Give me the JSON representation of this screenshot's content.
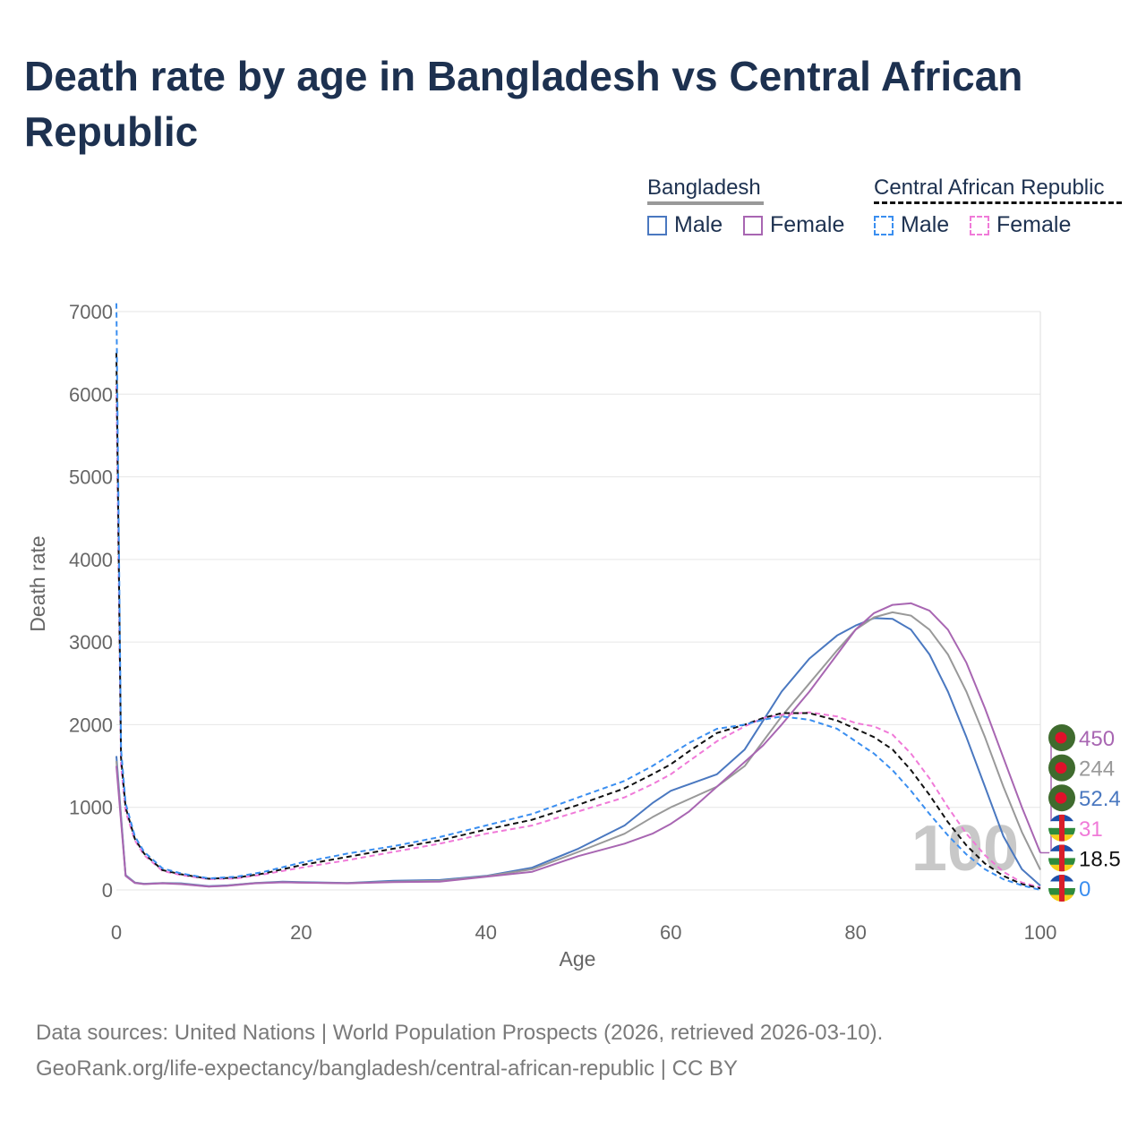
{
  "title": "Death rate by age in Bangladesh vs Central African Republic",
  "legend": {
    "groups": [
      {
        "name": "Bangladesh",
        "style": "solid",
        "items": [
          {
            "label": "Male",
            "color": "#4a78c0"
          },
          {
            "label": "Female",
            "color": "#a866b2"
          }
        ]
      },
      {
        "name": "Central African Republic",
        "style": "dashed",
        "items": [
          {
            "label": "Male",
            "color": "#3a8ef0"
          },
          {
            "label": "Female",
            "color": "#f07ad8"
          }
        ]
      }
    ]
  },
  "footer": {
    "line1": "Data sources: United Nations | World Population Prospects (2026, retrieved 2026-03-10).",
    "line2": "GeoRank.org/life-expectancy/bangladesh/central-african-republic | CC BY"
  },
  "chart_data": {
    "type": "line",
    "xlabel": "Age",
    "ylabel": "Death rate",
    "xlim": [
      0,
      100
    ],
    "ylim": [
      0,
      7000
    ],
    "xticks": [
      "0",
      "20",
      "40",
      "60",
      "80",
      "100"
    ],
    "yticks": [
      "0",
      "1000",
      "2000",
      "3000",
      "4000",
      "5000",
      "6000",
      "7000"
    ],
    "hover_age": "100",
    "series": [
      {
        "name": "Bangladesh Male",
        "color": "#4a78c0",
        "dash": false,
        "points": [
          [
            0,
            1620
          ],
          [
            1,
            180
          ],
          [
            2,
            90
          ],
          [
            3,
            75
          ],
          [
            5,
            85
          ],
          [
            7,
            80
          ],
          [
            10,
            45
          ],
          [
            12,
            55
          ],
          [
            15,
            85
          ],
          [
            18,
            100
          ],
          [
            20,
            95
          ],
          [
            25,
            85
          ],
          [
            30,
            110
          ],
          [
            35,
            120
          ],
          [
            40,
            170
          ],
          [
            45,
            270
          ],
          [
            50,
            500
          ],
          [
            55,
            780
          ],
          [
            58,
            1050
          ],
          [
            60,
            1200
          ],
          [
            62,
            1280
          ],
          [
            65,
            1400
          ],
          [
            68,
            1700
          ],
          [
            70,
            2050
          ],
          [
            72,
            2400
          ],
          [
            75,
            2800
          ],
          [
            78,
            3080
          ],
          [
            80,
            3200
          ],
          [
            82,
            3290
          ],
          [
            84,
            3280
          ],
          [
            86,
            3150
          ],
          [
            88,
            2850
          ],
          [
            90,
            2400
          ],
          [
            92,
            1850
          ],
          [
            94,
            1250
          ],
          [
            96,
            650
          ],
          [
            98,
            250
          ],
          [
            100,
            52.4
          ]
        ]
      },
      {
        "name": "Bangladesh Total",
        "color": "#999999",
        "dash": false,
        "points": [
          [
            0,
            1560
          ],
          [
            1,
            175
          ],
          [
            2,
            88
          ],
          [
            3,
            72
          ],
          [
            5,
            82
          ],
          [
            7,
            75
          ],
          [
            10,
            42
          ],
          [
            12,
            52
          ],
          [
            15,
            82
          ],
          [
            18,
            95
          ],
          [
            20,
            90
          ],
          [
            25,
            82
          ],
          [
            30,
            100
          ],
          [
            35,
            110
          ],
          [
            40,
            165
          ],
          [
            45,
            250
          ],
          [
            50,
            460
          ],
          [
            55,
            680
          ],
          [
            58,
            880
          ],
          [
            60,
            1000
          ],
          [
            62,
            1100
          ],
          [
            65,
            1250
          ],
          [
            68,
            1500
          ],
          [
            70,
            1800
          ],
          [
            72,
            2100
          ],
          [
            75,
            2500
          ],
          [
            78,
            2900
          ],
          [
            80,
            3150
          ],
          [
            82,
            3300
          ],
          [
            84,
            3360
          ],
          [
            86,
            3320
          ],
          [
            88,
            3150
          ],
          [
            90,
            2850
          ],
          [
            92,
            2400
          ],
          [
            94,
            1850
          ],
          [
            96,
            1250
          ],
          [
            98,
            700
          ],
          [
            100,
            244
          ]
        ]
      },
      {
        "name": "Bangladesh Female",
        "color": "#a866b2",
        "dash": false,
        "points": [
          [
            0,
            1500
          ],
          [
            1,
            170
          ],
          [
            2,
            85
          ],
          [
            3,
            70
          ],
          [
            5,
            80
          ],
          [
            7,
            70
          ],
          [
            10,
            40
          ],
          [
            12,
            50
          ],
          [
            15,
            80
          ],
          [
            18,
            92
          ],
          [
            20,
            88
          ],
          [
            25,
            80
          ],
          [
            30,
            95
          ],
          [
            35,
            100
          ],
          [
            40,
            160
          ],
          [
            45,
            220
          ],
          [
            50,
            410
          ],
          [
            55,
            560
          ],
          [
            58,
            680
          ],
          [
            60,
            800
          ],
          [
            62,
            950
          ],
          [
            65,
            1250
          ],
          [
            68,
            1550
          ],
          [
            70,
            1750
          ],
          [
            72,
            2000
          ],
          [
            75,
            2400
          ],
          [
            78,
            2850
          ],
          [
            80,
            3150
          ],
          [
            82,
            3350
          ],
          [
            84,
            3450
          ],
          [
            86,
            3470
          ],
          [
            88,
            3380
          ],
          [
            90,
            3150
          ],
          [
            92,
            2750
          ],
          [
            94,
            2200
          ],
          [
            96,
            1600
          ],
          [
            98,
            1000
          ],
          [
            100,
            450
          ]
        ]
      },
      {
        "name": "Central African Republic Female",
        "color": "#f07ad8",
        "dash": true,
        "points": [
          [
            0,
            6100
          ],
          [
            0.5,
            1500
          ],
          [
            1,
            950
          ],
          [
            2,
            600
          ],
          [
            3,
            420
          ],
          [
            5,
            230
          ],
          [
            7,
            180
          ],
          [
            10,
            130
          ],
          [
            13,
            140
          ],
          [
            16,
            190
          ],
          [
            20,
            270
          ],
          [
            25,
            360
          ],
          [
            30,
            460
          ],
          [
            35,
            560
          ],
          [
            40,
            680
          ],
          [
            45,
            780
          ],
          [
            50,
            950
          ],
          [
            55,
            1120
          ],
          [
            58,
            1280
          ],
          [
            60,
            1400
          ],
          [
            62,
            1560
          ],
          [
            65,
            1800
          ],
          [
            68,
            1980
          ],
          [
            70,
            2080
          ],
          [
            72,
            2120
          ],
          [
            75,
            2150
          ],
          [
            78,
            2100
          ],
          [
            80,
            2020
          ],
          [
            82,
            1980
          ],
          [
            84,
            1880
          ],
          [
            86,
            1650
          ],
          [
            88,
            1350
          ],
          [
            90,
            1000
          ],
          [
            92,
            680
          ],
          [
            94,
            420
          ],
          [
            96,
            220
          ],
          [
            98,
            90
          ],
          [
            100,
            31
          ]
        ]
      },
      {
        "name": "Central African Republic Total",
        "color": "#111111",
        "dash": true,
        "points": [
          [
            0,
            6500
          ],
          [
            0.5,
            1600
          ],
          [
            1,
            1000
          ],
          [
            2,
            620
          ],
          [
            3,
            440
          ],
          [
            5,
            240
          ],
          [
            7,
            190
          ],
          [
            10,
            135
          ],
          [
            13,
            150
          ],
          [
            16,
            200
          ],
          [
            20,
            300
          ],
          [
            25,
            400
          ],
          [
            30,
            500
          ],
          [
            35,
            600
          ],
          [
            40,
            730
          ],
          [
            45,
            850
          ],
          [
            50,
            1030
          ],
          [
            55,
            1230
          ],
          [
            58,
            1400
          ],
          [
            60,
            1520
          ],
          [
            62,
            1680
          ],
          [
            65,
            1900
          ],
          [
            68,
            2000
          ],
          [
            70,
            2080
          ],
          [
            72,
            2140
          ],
          [
            75,
            2140
          ],
          [
            78,
            2050
          ],
          [
            80,
            1950
          ],
          [
            82,
            1850
          ],
          [
            84,
            1700
          ],
          [
            86,
            1450
          ],
          [
            88,
            1150
          ],
          [
            90,
            820
          ],
          [
            92,
            540
          ],
          [
            94,
            320
          ],
          [
            96,
            170
          ],
          [
            98,
            70
          ],
          [
            100,
            18.5
          ]
        ]
      },
      {
        "name": "Central African Republic Male",
        "color": "#3a8ef0",
        "dash": true,
        "points": [
          [
            0,
            7100
          ],
          [
            0.5,
            1700
          ],
          [
            1,
            1050
          ],
          [
            2,
            650
          ],
          [
            3,
            460
          ],
          [
            5,
            260
          ],
          [
            7,
            200
          ],
          [
            10,
            140
          ],
          [
            13,
            160
          ],
          [
            16,
            220
          ],
          [
            20,
            330
          ],
          [
            25,
            440
          ],
          [
            30,
            530
          ],
          [
            35,
            640
          ],
          [
            40,
            780
          ],
          [
            45,
            920
          ],
          [
            50,
            1120
          ],
          [
            55,
            1320
          ],
          [
            58,
            1500
          ],
          [
            60,
            1640
          ],
          [
            62,
            1780
          ],
          [
            65,
            1950
          ],
          [
            68,
            2000
          ],
          [
            70,
            2060
          ],
          [
            72,
            2100
          ],
          [
            75,
            2060
          ],
          [
            78,
            1950
          ],
          [
            80,
            1800
          ],
          [
            82,
            1650
          ],
          [
            84,
            1450
          ],
          [
            86,
            1200
          ],
          [
            88,
            920
          ],
          [
            90,
            660
          ],
          [
            92,
            430
          ],
          [
            94,
            250
          ],
          [
            96,
            130
          ],
          [
            98,
            55
          ],
          [
            100,
            0
          ]
        ]
      }
    ],
    "end_labels": [
      {
        "value": "450",
        "color": "#a866b2",
        "country": "Bangladesh"
      },
      {
        "value": "244",
        "color": "#999999",
        "country": "Bangladesh"
      },
      {
        "value": "52.4",
        "color": "#4a78c0",
        "country": "Bangladesh"
      },
      {
        "value": "31",
        "color": "#f07ad8",
        "country": "Central African Republic"
      },
      {
        "value": "18.5",
        "color": "#111111",
        "country": "Central African Republic"
      },
      {
        "value": "0",
        "color": "#3a8ef0",
        "country": "Central African Republic"
      }
    ]
  }
}
